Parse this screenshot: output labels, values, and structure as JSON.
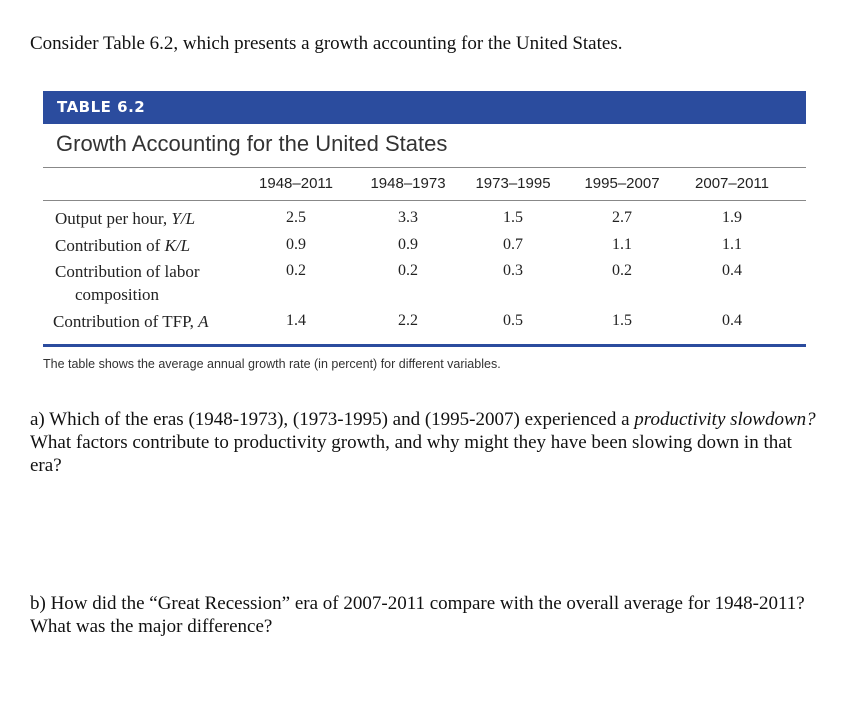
{
  "intro": "Consider Table 6.2, which presents a growth accounting for the United States.",
  "table": {
    "label": "TABLE 6.2",
    "title": "Growth Accounting for the United States",
    "columns": [
      "1948–2011",
      "1948–1973",
      "1973–1995",
      "1995–2007",
      "2007–2011"
    ],
    "rows": [
      {
        "label": [
          {
            "text": "Output per hour, "
          },
          {
            "text": "Y/L",
            "italic": true
          }
        ],
        "values": [
          "2.5",
          "3.3",
          "1.5",
          "2.7",
          "1.9"
        ]
      },
      {
        "label": [
          {
            "text": "Contribution of "
          },
          {
            "text": "K/L",
            "italic": true
          }
        ],
        "values": [
          "0.9",
          "0.9",
          "0.7",
          "1.1",
          "1.1"
        ]
      },
      {
        "label": [
          {
            "text": "Contribution of labor composition"
          }
        ],
        "values": [
          "0.2",
          "0.2",
          "0.3",
          "0.2",
          "0.4"
        ]
      },
      {
        "label": [
          {
            "text": "Contribution of TFP, "
          },
          {
            "text": "A",
            "italic": true
          }
        ],
        "values": [
          "1.4",
          "2.2",
          "0.5",
          "1.5",
          "0.4"
        ]
      }
    ],
    "note": "The table shows the average annual growth rate (in percent) for different variables."
  },
  "questions": [
    [
      {
        "text": "a) Which of the eras (1948-1973), (1973-1995) and (1995-2007) experienced a "
      },
      {
        "text": "productivity slowdown?",
        "italic": true
      },
      {
        "text": " What factors contribute to productivity growth, and why might they have been slowing down in that era?"
      }
    ],
    [
      {
        "text": "b) How did the “Great Recession” era of 2007-2011 compare with the overall average for 1948-2011? What was the major difference?"
      }
    ]
  ]
}
